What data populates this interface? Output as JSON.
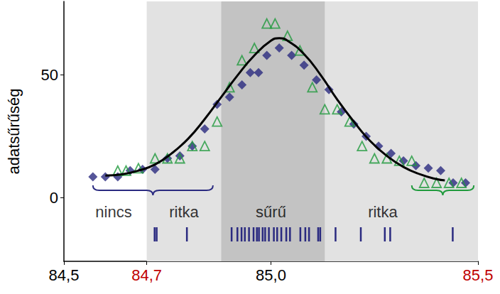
{
  "chart_data": {
    "type": "scatter",
    "y_label": "adatsűrűség",
    "xlim": [
      84.5,
      85.5
    ],
    "xticks": [
      {
        "value": 84.5,
        "label": "84,5"
      },
      {
        "value": 84.7,
        "label": "84,7",
        "color": "#c00000"
      },
      {
        "value": 85.0,
        "label": "85,0"
      },
      {
        "value": 85.5,
        "label": "85,5",
        "color": "#c00000"
      }
    ],
    "ylim": [
      -26,
      80
    ],
    "yticks": [
      0,
      50
    ],
    "grid": false,
    "series": [
      {
        "type": "line",
        "color": "#000000",
        "line_style": "smooth",
        "x": [
          84.6,
          84.64,
          84.68,
          84.72,
          84.76,
          84.8,
          84.84,
          84.88,
          84.92,
          84.96,
          85.0,
          85.02,
          85.04,
          85.08,
          85.12,
          85.16,
          85.2,
          85.24,
          85.28,
          85.32,
          85.36,
          85.4,
          85.42
        ],
        "values": [
          9,
          9.5,
          11,
          13.5,
          18,
          24,
          32,
          41,
          50,
          58,
          64,
          65,
          64,
          58.5,
          50,
          40,
          31,
          23,
          17,
          12.5,
          9.5,
          7.5,
          7
        ]
      },
      {
        "type": "scatter",
        "color": "#2a2a80",
        "marker": "diamond",
        "x": [
          84.57,
          84.6,
          84.63,
          84.66,
          84.69,
          84.72,
          84.75,
          84.78,
          84.81,
          84.84,
          84.87,
          84.9,
          84.93,
          84.95,
          84.97,
          84.99,
          85.02,
          85.05,
          85.08,
          85.11,
          85.14,
          85.17,
          85.2,
          85.23,
          85.26,
          85.29,
          85.32,
          85.35,
          85.38,
          85.41,
          85.44,
          85.47
        ],
        "values": [
          8.5,
          8.5,
          8.5,
          11,
          11.5,
          11.5,
          16,
          17,
          21,
          28,
          38,
          41,
          46,
          51,
          51,
          58,
          61,
          58,
          54,
          48,
          44,
          35,
          30,
          25,
          21,
          18,
          15,
          13,
          12,
          11,
          6,
          6
        ]
      },
      {
        "type": "scatter",
        "color": "#1f9a3c",
        "marker": "triangle-open",
        "x": [
          84.63,
          84.65,
          84.68,
          84.72,
          84.75,
          84.78,
          84.81,
          84.84,
          84.87,
          84.9,
          84.93,
          84.96,
          84.99,
          85.01,
          85.04,
          85.07,
          85.1,
          85.13,
          85.16,
          85.19,
          85.22,
          85.25,
          85.28,
          85.31,
          85.34,
          85.37,
          85.4,
          85.43,
          85.46
        ],
        "values": [
          11,
          11,
          12,
          16,
          16,
          16,
          21,
          21,
          31,
          45,
          56,
          61,
          71,
          71,
          66,
          60,
          45,
          36,
          36,
          31,
          21,
          16,
          16,
          15,
          15,
          6,
          6,
          6,
          6
        ]
      }
    ],
    "bands": [
      {
        "from": 84.7,
        "to": 85.5,
        "color": "#e2e2e2"
      },
      {
        "from": 84.88,
        "to": 85.13,
        "color": "#c3c3c3"
      }
    ],
    "braces": [
      {
        "from": 84.57,
        "to": 84.86,
        "y": 5,
        "color": "#2a2a80"
      },
      {
        "from": 85.34,
        "to": 85.49,
        "y": 5,
        "color": "#1f9a3c"
      }
    ],
    "annotations": [
      {
        "text": "nincs",
        "x": 84.62,
        "y": -6
      },
      {
        "text": "ritka",
        "x": 84.79,
        "y": -6
      },
      {
        "text": "sűrű",
        "x": 85.0,
        "y": -6
      },
      {
        "text": "ritka",
        "x": 85.27,
        "y": -6
      }
    ],
    "rug": {
      "color": "#2a2a80",
      "y": -15,
      "x": [
        84.719,
        84.724,
        84.797,
        84.905,
        84.919,
        84.929,
        84.937,
        84.947,
        84.958,
        84.966,
        84.971,
        84.98,
        84.986,
        84.995,
        85.007,
        85.015,
        85.025,
        85.037,
        85.046,
        85.071,
        85.083,
        85.092,
        85.114,
        85.119,
        85.156,
        85.217,
        85.275,
        85.288,
        85.439
      ]
    }
  }
}
